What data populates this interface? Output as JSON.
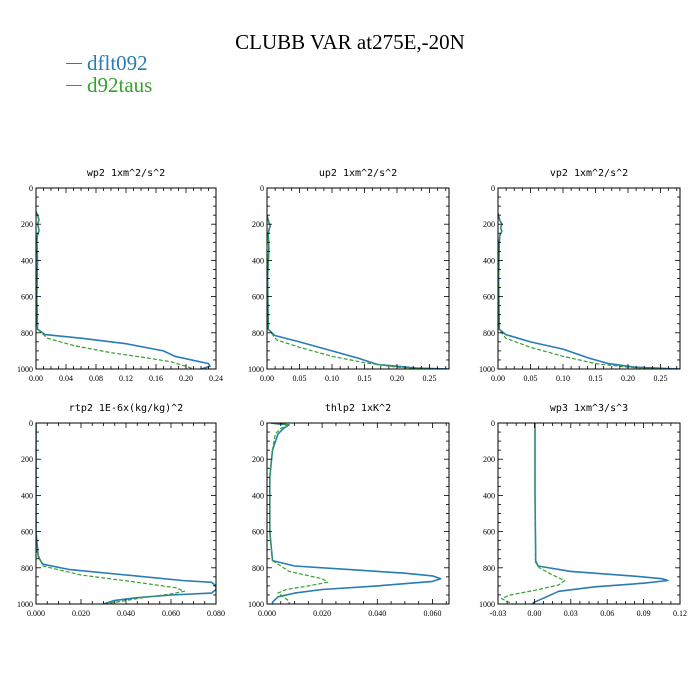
{
  "figure": {
    "title": "CLUBB VAR at275E,-20N",
    "legend": [
      {
        "label": "dflt092",
        "color": "#2a7bb3"
      },
      {
        "label": "d92taus",
        "color": "#36a02f"
      }
    ]
  },
  "chart_data": [
    {
      "type": "line",
      "title": "wp2   1xm^2/s^2",
      "xlabel": "",
      "ylabel": "",
      "xlim": [
        0,
        0.24
      ],
      "ylim": [
        1000,
        0
      ],
      "grid": false,
      "xticks": [
        0.0,
        0.04,
        0.08,
        0.12,
        0.16,
        0.2,
        0.24
      ],
      "xtick_labels": [
        "0.00",
        "0.04",
        "0.08",
        "0.12",
        "0.16",
        "0.20",
        "0.24"
      ],
      "yticks": [
        0,
        200,
        400,
        600,
        800,
        1000
      ],
      "ytick_labels": [
        "0",
        "200",
        "400",
        "600",
        "800",
        "1000"
      ],
      "series": [
        {
          "name": "dflt092",
          "x": [
            0.0,
            0.002,
            0.004,
            0.002,
            0.003,
            0.004,
            0.002,
            0.001,
            0.002,
            0.001,
            0.002,
            0.012,
            0.06,
            0.12,
            0.17,
            0.185,
            0.23,
            0.232,
            0.22
          ],
          "y": [
            130,
            150,
            175,
            200,
            215,
            235,
            260,
            300,
            400,
            600,
            780,
            810,
            830,
            860,
            900,
            930,
            970,
            985,
            1000
          ]
        },
        {
          "name": "d92taus",
          "x": [
            0.0,
            0.002,
            0.004,
            0.002,
            0.003,
            0.004,
            0.002,
            0.001,
            0.002,
            0.001,
            0.002,
            0.015,
            0.05,
            0.1,
            0.15,
            0.18,
            0.2,
            0.21
          ],
          "y": [
            130,
            150,
            175,
            200,
            215,
            235,
            260,
            300,
            400,
            600,
            780,
            830,
            870,
            910,
            940,
            960,
            985,
            1000
          ]
        }
      ]
    },
    {
      "type": "line",
      "title": "up2   1xm^2/s^2",
      "xlabel": "",
      "ylabel": "",
      "xlim": [
        0,
        0.28
      ],
      "ylim": [
        1000,
        0
      ],
      "grid": false,
      "xticks": [
        0.0,
        0.05,
        0.1,
        0.15,
        0.2,
        0.25
      ],
      "xtick_labels": [
        "0.00",
        "0.05",
        "0.10",
        "0.15",
        "0.20",
        "0.25"
      ],
      "yticks": [
        0,
        200,
        400,
        600,
        800,
        1000
      ],
      "ytick_labels": [
        "0",
        "200",
        "400",
        "600",
        "800",
        "1000"
      ],
      "series": [
        {
          "name": "dflt092",
          "x": [
            0.0,
            0.003,
            0.005,
            0.003,
            0.002,
            0.003,
            0.001,
            0.002,
            0.012,
            0.05,
            0.1,
            0.14,
            0.17,
            0.23,
            0.28
          ],
          "y": [
            150,
            190,
            210,
            230,
            260,
            330,
            500,
            780,
            815,
            850,
            900,
            940,
            975,
            995,
            1000
          ]
        },
        {
          "name": "d92taus",
          "x": [
            0.0,
            0.003,
            0.005,
            0.003,
            0.002,
            0.003,
            0.001,
            0.002,
            0.015,
            0.05,
            0.1,
            0.15,
            0.2,
            0.25
          ],
          "y": [
            150,
            190,
            210,
            230,
            260,
            330,
            500,
            780,
            840,
            880,
            930,
            965,
            990,
            1000
          ]
        }
      ]
    },
    {
      "type": "line",
      "title": "vp2   1xm^2/s^2",
      "xlabel": "",
      "ylabel": "",
      "xlim": [
        0,
        0.28
      ],
      "ylim": [
        1000,
        0
      ],
      "grid": false,
      "xticks": [
        0.0,
        0.05,
        0.1,
        0.15,
        0.2,
        0.25
      ],
      "xtick_labels": [
        "0.00",
        "0.05",
        "0.10",
        "0.15",
        "0.20",
        "0.25"
      ],
      "yticks": [
        0,
        200,
        400,
        600,
        800,
        1000
      ],
      "ytick_labels": [
        "0",
        "200",
        "400",
        "600",
        "800",
        "1000"
      ],
      "series": [
        {
          "name": "dflt092",
          "x": [
            0.0,
            0.003,
            0.006,
            0.004,
            0.006,
            0.003,
            0.002,
            0.001,
            0.002,
            0.012,
            0.05,
            0.1,
            0.14,
            0.17,
            0.21,
            0.28
          ],
          "y": [
            140,
            180,
            200,
            220,
            240,
            260,
            300,
            500,
            780,
            810,
            850,
            890,
            940,
            970,
            990,
            1000
          ]
        },
        {
          "name": "d92taus",
          "x": [
            0.0,
            0.003,
            0.006,
            0.004,
            0.006,
            0.003,
            0.002,
            0.001,
            0.002,
            0.012,
            0.05,
            0.1,
            0.15,
            0.2,
            0.25
          ],
          "y": [
            140,
            180,
            200,
            220,
            240,
            260,
            300,
            500,
            780,
            830,
            880,
            930,
            970,
            990,
            1000
          ]
        }
      ]
    },
    {
      "type": "line",
      "title": "rtp2   1E-6x(kg/kg)^2",
      "xlabel": "",
      "ylabel": "",
      "xlim": [
        0,
        0.08
      ],
      "ylim": [
        1000,
        0
      ],
      "grid": false,
      "xticks": [
        0.0,
        0.02,
        0.04,
        0.06,
        0.08
      ],
      "xtick_labels": [
        "0.000",
        "0.020",
        "0.040",
        "0.060",
        "0.080"
      ],
      "yticks": [
        0,
        200,
        400,
        600,
        800,
        1000
      ],
      "ytick_labels": [
        "0",
        "200",
        "400",
        "600",
        "800",
        "1000"
      ],
      "series": [
        {
          "name": "dflt092",
          "x": [
            0.0,
            0.0,
            0.001,
            0.003,
            0.015,
            0.04,
            0.065,
            0.078,
            0.08,
            0.08,
            0.078,
            0.06,
            0.045,
            0.035,
            0.03
          ],
          "y": [
            0,
            600,
            740,
            780,
            810,
            840,
            870,
            880,
            900,
            920,
            940,
            950,
            965,
            980,
            1000
          ]
        },
        {
          "name": "d92taus",
          "x": [
            0.0,
            0.0,
            0.003,
            0.02,
            0.045,
            0.062,
            0.066,
            0.06,
            0.05,
            0.045,
            0.038,
            0.03
          ],
          "y": [
            0,
            700,
            790,
            840,
            880,
            910,
            930,
            945,
            960,
            970,
            985,
            1000
          ]
        }
      ]
    },
    {
      "type": "line",
      "title": "thlp2   1xK^2",
      "xlabel": "",
      "ylabel": "",
      "xlim": [
        0,
        0.066
      ],
      "ylim": [
        1000,
        0
      ],
      "grid": false,
      "xticks": [
        0.0,
        0.02,
        0.04,
        0.06
      ],
      "xtick_labels": [
        "0.000",
        "0.020",
        "0.040",
        "0.060"
      ],
      "yticks": [
        0,
        200,
        400,
        600,
        800,
        1000
      ],
      "ytick_labels": [
        "0",
        "200",
        "400",
        "600",
        "800",
        "1000"
      ],
      "series": [
        {
          "name": "dflt092",
          "x": [
            0.0015,
            0.004,
            0.008,
            0.006,
            0.004,
            0.002,
            0.001,
            0.001,
            0.002,
            0.01,
            0.03,
            0.05,
            0.06,
            0.063,
            0.06,
            0.04,
            0.02,
            0.01,
            0.004,
            0.002,
            0.002
          ],
          "y": [
            0,
            5,
            10,
            30,
            60,
            150,
            300,
            600,
            760,
            790,
            810,
            830,
            845,
            860,
            875,
            900,
            920,
            940,
            960,
            990,
            1000
          ]
        },
        {
          "name": "d92taus",
          "x": [
            0.0015,
            0.004,
            0.008,
            0.005,
            0.003,
            0.002,
            0.001,
            0.001,
            0.002,
            0.008,
            0.02,
            0.022,
            0.015,
            0.007,
            0.004,
            0.006,
            0.008,
            0.008
          ],
          "y": [
            0,
            5,
            10,
            30,
            60,
            150,
            300,
            600,
            760,
            820,
            860,
            880,
            900,
            920,
            940,
            960,
            985,
            1000
          ]
        }
      ]
    },
    {
      "type": "line",
      "title": "wp3   1xm^3/s^3",
      "xlabel": "",
      "ylabel": "",
      "xlim": [
        -0.03,
        0.12
      ],
      "ylim": [
        1000,
        0
      ],
      "grid": false,
      "xticks": [
        -0.03,
        0.0,
        0.03,
        0.06,
        0.09,
        0.12
      ],
      "xtick_labels": [
        "-0.03",
        "0.00",
        "0.03",
        "0.06",
        "0.09",
        "0.12"
      ],
      "yticks": [
        0,
        200,
        400,
        600,
        800,
        1000
      ],
      "ytick_labels": [
        "0",
        "200",
        "400",
        "600",
        "800",
        "1000"
      ],
      "series": [
        {
          "name": "dflt092",
          "x": [
            0.0005,
            0.0005,
            0.001,
            0.001,
            0.003,
            0.03,
            0.08,
            0.105,
            0.11,
            0.09,
            0.05,
            0.02,
            0.01,
            0.0,
            -0.002
          ],
          "y": [
            0,
            400,
            700,
            760,
            790,
            820,
            845,
            860,
            870,
            885,
            905,
            930,
            960,
            990,
            1000
          ]
        },
        {
          "name": "d92taus",
          "x": [
            0.0005,
            0.0005,
            0.001,
            0.001,
            0.004,
            0.015,
            0.025,
            0.02,
            0.0,
            -0.02,
            -0.027,
            -0.018
          ],
          "y": [
            0,
            400,
            700,
            770,
            800,
            840,
            870,
            895,
            925,
            950,
            970,
            1000
          ]
        }
      ]
    }
  ]
}
